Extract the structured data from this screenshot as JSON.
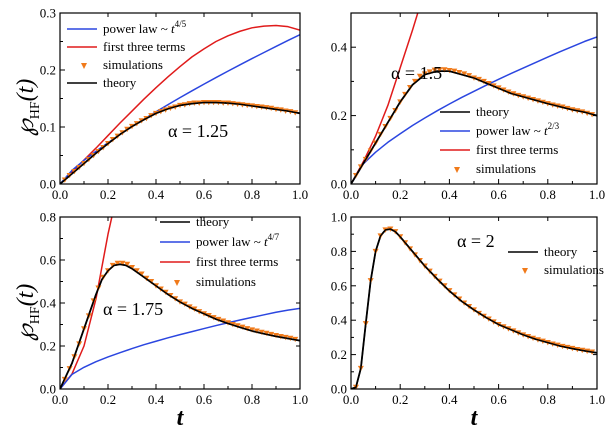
{
  "figure": {
    "y_label_main": "℘",
    "y_label_sub": "HF",
    "y_label_arg": "(t)",
    "x_label": "t"
  },
  "colors": {
    "theory": "#000000",
    "power_law": "#2b46e0",
    "first_three": "#e01b1b",
    "simulations": "#f07a1a"
  },
  "chart_data": [
    {
      "type": "line",
      "id": "a125",
      "annotation": "α = 1.25",
      "xlim": [
        0,
        1
      ],
      "ylim": [
        0,
        0.3
      ],
      "xticks": [
        0.0,
        0.2,
        0.4,
        0.6,
        0.8,
        1.0
      ],
      "xtick_labels": [
        "0.0",
        "0.2",
        "0.4",
        "0.6",
        "0.8",
        "1.0"
      ],
      "yticks": [
        0.0,
        0.1,
        0.2,
        0.3
      ],
      "ytick_labels": [
        "0.0",
        "0.1",
        "0.2",
        "0.3"
      ],
      "legend_position": "top-left",
      "legend": [
        {
          "key": "power_law",
          "label": "power law ~ ",
          "sup": "4/5"
        },
        {
          "key": "first_three",
          "label": "first three terms",
          "sup": ""
        },
        {
          "key": "simulations",
          "label": "simulations",
          "sup": ""
        },
        {
          "key": "theory",
          "label": "theory",
          "sup": ""
        }
      ],
      "series": {
        "theory": {
          "x": [
            0,
            0.05,
            0.1,
            0.15,
            0.2,
            0.25,
            0.3,
            0.35,
            0.4,
            0.45,
            0.5,
            0.55,
            0.6,
            0.65,
            0.7,
            0.75,
            0.8,
            0.85,
            0.9,
            0.95,
            1.0
          ],
          "y": [
            0,
            0.018,
            0.036,
            0.054,
            0.071,
            0.087,
            0.101,
            0.113,
            0.124,
            0.132,
            0.138,
            0.141,
            0.143,
            0.143,
            0.142,
            0.14,
            0.137,
            0.134,
            0.131,
            0.128,
            0.124
          ]
        },
        "power_law": {
          "x": [
            0,
            0.05,
            0.1,
            0.15,
            0.2,
            0.25,
            0.3,
            0.35,
            0.4,
            0.45,
            0.5,
            0.55,
            0.6,
            0.65,
            0.7,
            0.75,
            0.8,
            0.85,
            0.9,
            0.95,
            1.0
          ],
          "y": [
            0,
            0.0239,
            0.0415,
            0.0575,
            0.0725,
            0.0869,
            0.1006,
            0.1139,
            0.1268,
            0.1393,
            0.1515,
            0.1635,
            0.1752,
            0.1867,
            0.198,
            0.2091,
            0.22,
            0.2307,
            0.2413,
            0.2518,
            0.262
          ]
        },
        "first_three": {
          "x": [
            0,
            0.05,
            0.1,
            0.15,
            0.2,
            0.25,
            0.3,
            0.35,
            0.4,
            0.45,
            0.5,
            0.55,
            0.6,
            0.65,
            0.7,
            0.75,
            0.8,
            0.85,
            0.9,
            0.95,
            1.0
          ],
          "y": [
            0,
            0.021,
            0.042,
            0.063,
            0.085,
            0.107,
            0.128,
            0.149,
            0.169,
            0.188,
            0.206,
            0.223,
            0.237,
            0.25,
            0.26,
            0.268,
            0.274,
            0.277,
            0.278,
            0.276,
            0.27
          ]
        },
        "simulations": {
          "x": [
            0.02,
            0.04,
            0.06,
            0.08,
            0.1,
            0.12,
            0.14,
            0.16,
            0.18,
            0.2,
            0.22,
            0.24,
            0.26,
            0.28,
            0.3,
            0.32,
            0.34,
            0.36,
            0.38,
            0.4,
            0.42,
            0.44,
            0.46,
            0.48,
            0.5,
            0.52,
            0.54,
            0.56,
            0.58,
            0.6,
            0.62,
            0.64,
            0.66,
            0.68,
            0.7,
            0.72,
            0.74,
            0.76,
            0.78,
            0.8,
            0.82,
            0.84,
            0.86,
            0.88,
            0.9,
            0.92,
            0.94,
            0.96,
            0.98
          ],
          "y": [
            0.007,
            0.015,
            0.022,
            0.029,
            0.036,
            0.043,
            0.05,
            0.057,
            0.064,
            0.071,
            0.078,
            0.084,
            0.09,
            0.096,
            0.101,
            0.106,
            0.111,
            0.115,
            0.12,
            0.124,
            0.127,
            0.13,
            0.133,
            0.135,
            0.138,
            0.139,
            0.141,
            0.142,
            0.142,
            0.143,
            0.143,
            0.143,
            0.143,
            0.142,
            0.142,
            0.141,
            0.14,
            0.139,
            0.138,
            0.137,
            0.136,
            0.135,
            0.134,
            0.133,
            0.131,
            0.13,
            0.128,
            0.127,
            0.125
          ]
        }
      }
    },
    {
      "type": "line",
      "id": "a15",
      "annotation": "α = 1.5",
      "xlim": [
        0,
        1
      ],
      "ylim": [
        0,
        0.5
      ],
      "xticks": [
        0.0,
        0.2,
        0.4,
        0.6,
        0.8,
        1.0
      ],
      "xtick_labels": [
        "0.0",
        "0.2",
        "0.4",
        "0.6",
        "0.8",
        "1.0"
      ],
      "yticks": [
        0.0,
        0.2,
        0.4
      ],
      "ytick_labels": [
        "0.0",
        "0.2",
        "0.4"
      ],
      "legend_position": "bottom-right",
      "legend": [
        {
          "key": "theory",
          "label": "theory",
          "sup": ""
        },
        {
          "key": "power_law",
          "label": "power law ~ ",
          "sup": "2/3"
        },
        {
          "key": "first_three",
          "label": "first three terms",
          "sup": ""
        },
        {
          "key": "simulations",
          "label": "simulations",
          "sup": ""
        }
      ],
      "series": {
        "theory": {
          "x": [
            0,
            0.05,
            0.1,
            0.15,
            0.2,
            0.25,
            0.3,
            0.35,
            0.4,
            0.45,
            0.5,
            0.55,
            0.6,
            0.65,
            0.7,
            0.75,
            0.8,
            0.85,
            0.9,
            0.95,
            1.0
          ],
          "y": [
            0,
            0.06,
            0.12,
            0.18,
            0.24,
            0.29,
            0.32,
            0.33,
            0.33,
            0.32,
            0.31,
            0.295,
            0.28,
            0.265,
            0.255,
            0.245,
            0.235,
            0.226,
            0.217,
            0.21,
            0.2
          ]
        },
        "power_law": {
          "x": [
            0,
            0.05,
            0.1,
            0.15,
            0.2,
            0.25,
            0.3,
            0.35,
            0.4,
            0.45,
            0.5,
            0.55,
            0.6,
            0.65,
            0.7,
            0.75,
            0.8,
            0.85,
            0.9,
            0.95,
            1.0
          ],
          "y": [
            0,
            0.059,
            0.093,
            0.122,
            0.147,
            0.171,
            0.193,
            0.214,
            0.234,
            0.253,
            0.271,
            0.289,
            0.306,
            0.323,
            0.339,
            0.355,
            0.371,
            0.387,
            0.402,
            0.417,
            0.43
          ]
        },
        "first_three": {
          "x": [
            0,
            0.05,
            0.1,
            0.15,
            0.2,
            0.25,
            0.28
          ],
          "y": [
            0,
            0.065,
            0.14,
            0.23,
            0.34,
            0.45,
            0.52
          ]
        },
        "simulations": {
          "x": [
            0.02,
            0.04,
            0.06,
            0.08,
            0.1,
            0.12,
            0.14,
            0.16,
            0.18,
            0.2,
            0.22,
            0.24,
            0.26,
            0.28,
            0.3,
            0.32,
            0.34,
            0.36,
            0.38,
            0.4,
            0.42,
            0.44,
            0.46,
            0.48,
            0.5,
            0.52,
            0.54,
            0.56,
            0.58,
            0.6,
            0.62,
            0.64,
            0.66,
            0.68,
            0.7,
            0.72,
            0.74,
            0.76,
            0.78,
            0.8,
            0.82,
            0.84,
            0.86,
            0.88,
            0.9,
            0.92,
            0.94,
            0.96,
            0.98
          ],
          "y": [
            0.025,
            0.05,
            0.072,
            0.097,
            0.12,
            0.145,
            0.168,
            0.192,
            0.215,
            0.24,
            0.262,
            0.282,
            0.3,
            0.315,
            0.322,
            0.328,
            0.333,
            0.334,
            0.334,
            0.332,
            0.33,
            0.326,
            0.322,
            0.317,
            0.31,
            0.306,
            0.3,
            0.294,
            0.287,
            0.281,
            0.275,
            0.269,
            0.264,
            0.259,
            0.255,
            0.251,
            0.247,
            0.243,
            0.239,
            0.235,
            0.231,
            0.228,
            0.225,
            0.221,
            0.217,
            0.214,
            0.211,
            0.207,
            0.203
          ]
        }
      }
    },
    {
      "type": "line",
      "id": "a175",
      "annotation": "α = 1.75",
      "xlim": [
        0,
        1
      ],
      "ylim": [
        0,
        0.8
      ],
      "xticks": [
        0.0,
        0.2,
        0.4,
        0.6,
        0.8,
        1.0
      ],
      "xtick_labels": [
        "0.0",
        "0.2",
        "0.4",
        "0.6",
        "0.8",
        "1.0"
      ],
      "yticks": [
        0.0,
        0.2,
        0.4,
        0.6,
        0.8
      ],
      "ytick_labels": [
        "0.0",
        "0.2",
        "0.4",
        "0.6",
        "0.8"
      ],
      "legend_position": "top-right",
      "legend": [
        {
          "key": "theory",
          "label": "theory",
          "sup": ""
        },
        {
          "key": "power_law",
          "label": "power law ~ ",
          "sup": "4/7"
        },
        {
          "key": "first_three",
          "label": "first three terms",
          "sup": ""
        },
        {
          "key": "simulations",
          "label": "simulations",
          "sup": ""
        }
      ],
      "series": {
        "theory": {
          "x": [
            0,
            0.025,
            0.05,
            0.075,
            0.1,
            0.125,
            0.15,
            0.175,
            0.2,
            0.225,
            0.25,
            0.275,
            0.3,
            0.35,
            0.4,
            0.45,
            0.5,
            0.55,
            0.6,
            0.65,
            0.7,
            0.75,
            0.8,
            0.85,
            0.9,
            0.95,
            1.0
          ],
          "y": [
            0,
            0.06,
            0.12,
            0.2,
            0.28,
            0.36,
            0.44,
            0.51,
            0.55,
            0.575,
            0.58,
            0.575,
            0.56,
            0.52,
            0.48,
            0.44,
            0.405,
            0.375,
            0.35,
            0.325,
            0.305,
            0.287,
            0.27,
            0.257,
            0.245,
            0.235,
            0.225
          ]
        },
        "power_law": {
          "x": [
            0,
            0.05,
            0.1,
            0.15,
            0.2,
            0.25,
            0.3,
            0.35,
            0.4,
            0.45,
            0.5,
            0.55,
            0.6,
            0.65,
            0.7,
            0.75,
            0.8,
            0.85,
            0.9,
            0.95,
            1.0
          ],
          "y": [
            0,
            0.068,
            0.101,
            0.127,
            0.149,
            0.169,
            0.188,
            0.206,
            0.222,
            0.238,
            0.253,
            0.267,
            0.281,
            0.295,
            0.308,
            0.321,
            0.333,
            0.345,
            0.357,
            0.367,
            0.375
          ]
        },
        "first_three": {
          "x": [
            0,
            0.05,
            0.1,
            0.15,
            0.2,
            0.22
          ],
          "y": [
            0,
            0.07,
            0.2,
            0.42,
            0.72,
            0.82
          ]
        },
        "simulations": {
          "x": [
            0.02,
            0.04,
            0.06,
            0.08,
            0.1,
            0.12,
            0.14,
            0.16,
            0.18,
            0.2,
            0.22,
            0.24,
            0.26,
            0.28,
            0.3,
            0.32,
            0.34,
            0.36,
            0.38,
            0.4,
            0.42,
            0.44,
            0.46,
            0.48,
            0.5,
            0.52,
            0.54,
            0.56,
            0.58,
            0.6,
            0.62,
            0.64,
            0.66,
            0.68,
            0.7,
            0.72,
            0.74,
            0.76,
            0.78,
            0.8,
            0.82,
            0.84,
            0.86,
            0.88,
            0.9,
            0.92,
            0.94,
            0.96,
            0.98
          ],
          "y": [
            0.045,
            0.095,
            0.15,
            0.21,
            0.28,
            0.34,
            0.41,
            0.47,
            0.52,
            0.55,
            0.575,
            0.585,
            0.585,
            0.58,
            0.565,
            0.55,
            0.535,
            0.515,
            0.5,
            0.48,
            0.465,
            0.45,
            0.435,
            0.42,
            0.405,
            0.395,
            0.382,
            0.372,
            0.36,
            0.35,
            0.342,
            0.332,
            0.324,
            0.316,
            0.308,
            0.3,
            0.294,
            0.288,
            0.281,
            0.275,
            0.27,
            0.264,
            0.259,
            0.254,
            0.249,
            0.244,
            0.24,
            0.236,
            0.231
          ]
        }
      }
    },
    {
      "type": "line",
      "id": "a2",
      "annotation": "α = 2",
      "xlim": [
        0,
        1
      ],
      "ylim": [
        0,
        1.0
      ],
      "xticks": [
        0.0,
        0.2,
        0.4,
        0.6,
        0.8,
        1.0
      ],
      "xtick_labels": [
        "0.0",
        "0.2",
        "0.4",
        "0.6",
        "0.8",
        "1.0"
      ],
      "yticks": [
        0.0,
        0.2,
        0.4,
        0.6,
        0.8,
        1.0
      ],
      "ytick_labels": [
        "0.0",
        "0.2",
        "0.4",
        "0.6",
        "0.8",
        "1.0"
      ],
      "legend_position": "top-right",
      "legend": [
        {
          "key": "theory",
          "label": "theory",
          "sup": ""
        },
        {
          "key": "simulations",
          "label": "simulations",
          "sup": ""
        }
      ],
      "series": {
        "theory": {
          "x": [
            0,
            0.02,
            0.04,
            0.06,
            0.08,
            0.1,
            0.12,
            0.14,
            0.16,
            0.18,
            0.2,
            0.25,
            0.3,
            0.35,
            0.4,
            0.45,
            0.5,
            0.55,
            0.6,
            0.65,
            0.7,
            0.75,
            0.8,
            0.85,
            0.9,
            0.95,
            1.0
          ],
          "y": [
            0,
            0.01,
            0.12,
            0.38,
            0.63,
            0.8,
            0.89,
            0.925,
            0.93,
            0.915,
            0.885,
            0.8,
            0.715,
            0.64,
            0.57,
            0.51,
            0.46,
            0.415,
            0.375,
            0.345,
            0.315,
            0.29,
            0.27,
            0.25,
            0.235,
            0.222,
            0.21
          ]
        },
        "simulations": {
          "x": [
            0.02,
            0.04,
            0.06,
            0.08,
            0.1,
            0.12,
            0.14,
            0.16,
            0.18,
            0.2,
            0.22,
            0.24,
            0.26,
            0.28,
            0.3,
            0.32,
            0.34,
            0.36,
            0.38,
            0.4,
            0.42,
            0.44,
            0.46,
            0.48,
            0.5,
            0.52,
            0.54,
            0.56,
            0.58,
            0.6,
            0.62,
            0.64,
            0.66,
            0.68,
            0.7,
            0.72,
            0.74,
            0.76,
            0.78,
            0.8,
            0.82,
            0.84,
            0.86,
            0.88,
            0.9,
            0.92,
            0.94,
            0.96,
            0.98
          ],
          "y": [
            0.01,
            0.12,
            0.38,
            0.63,
            0.8,
            0.89,
            0.925,
            0.93,
            0.915,
            0.885,
            0.85,
            0.815,
            0.78,
            0.747,
            0.715,
            0.685,
            0.655,
            0.627,
            0.6,
            0.572,
            0.547,
            0.523,
            0.5,
            0.48,
            0.46,
            0.44,
            0.423,
            0.407,
            0.39,
            0.375,
            0.362,
            0.35,
            0.338,
            0.326,
            0.315,
            0.305,
            0.295,
            0.286,
            0.278,
            0.27,
            0.262,
            0.255,
            0.248,
            0.242,
            0.236,
            0.23,
            0.225,
            0.22,
            0.215
          ]
        }
      }
    }
  ]
}
